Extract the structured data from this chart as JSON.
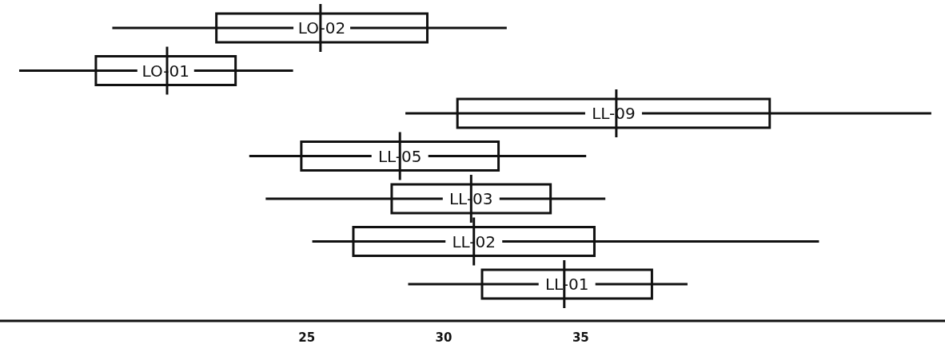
{
  "chart_data": {
    "type": "box",
    "orientation": "horizontal",
    "categories": [
      "LO-02",
      "LO-01",
      "LL-09",
      "LL-05",
      "LL-03",
      "LL-02",
      "LL-01"
    ],
    "boxes": [
      {
        "low": 17.9,
        "q1": 21.7,
        "median": 25.5,
        "q3": 29.4,
        "high": 32.3
      },
      {
        "low": 14.5,
        "q1": 17.3,
        "median": 19.9,
        "q3": 22.4,
        "high": 24.5
      },
      {
        "low": 28.6,
        "q1": 30.5,
        "median": 36.3,
        "q3": 41.9,
        "high": 47.8
      },
      {
        "low": 22.9,
        "q1": 24.8,
        "median": 28.4,
        "q3": 32.0,
        "high": 35.2
      },
      {
        "low": 23.5,
        "q1": 28.1,
        "median": 31.0,
        "q3": 33.9,
        "high": 35.9
      },
      {
        "low": 25.2,
        "q1": 26.7,
        "median": 31.1,
        "q3": 35.5,
        "high": 43.7
      },
      {
        "low": 28.7,
        "q1": 31.4,
        "median": 34.4,
        "q3": 37.6,
        "high": 38.9
      }
    ],
    "xlim": [
      13.8,
      48.3
    ],
    "xticks": [
      25,
      30,
      35
    ]
  }
}
